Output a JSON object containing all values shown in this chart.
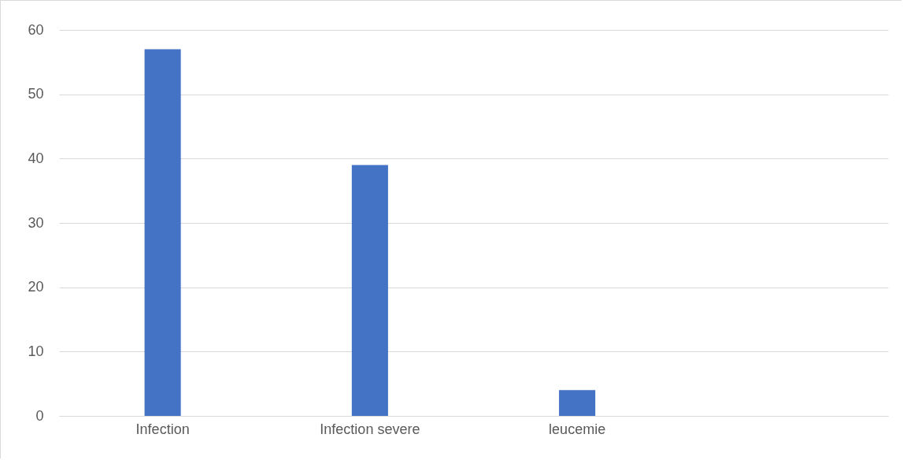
{
  "chart_data": {
    "type": "bar",
    "categories": [
      "Infection",
      "Infection severe",
      "leucemie",
      null
    ],
    "values": [
      57,
      39,
      4,
      null
    ],
    "color": "#4472c4",
    "ylim": [
      0,
      60
    ],
    "yticks": [
      0,
      10,
      20,
      30,
      40,
      50,
      60
    ],
    "grid": "y"
  }
}
